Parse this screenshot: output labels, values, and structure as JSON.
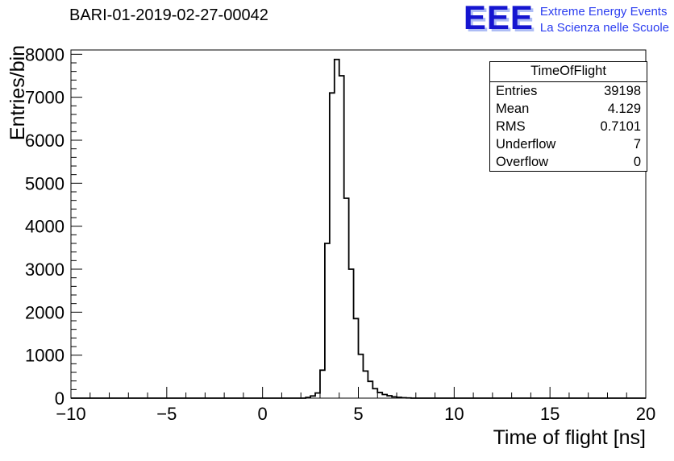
{
  "header": {
    "title": "BARI-01-2019-02-27-00042",
    "logo": {
      "text": "EEE",
      "line1": "Extreme Energy Events",
      "line2": "La Scienza nelle Scuole",
      "color": "#1515d0"
    }
  },
  "stats_box": {
    "title": "TimeOfFlight",
    "rows": [
      {
        "label": "Entries",
        "value": "39198"
      },
      {
        "label": "Mean",
        "value": "4.129"
      },
      {
        "label": "RMS",
        "value": "0.7101"
      },
      {
        "label": "Underflow",
        "value": "7"
      },
      {
        "label": "Overflow",
        "value": "0"
      }
    ]
  },
  "chart_data": {
    "type": "bar",
    "style": "histogram-step",
    "title": "BARI-01-2019-02-27-00042",
    "xlabel": "Time of flight [ns]",
    "ylabel": "Entries/bin",
    "xlim": [
      -10,
      20
    ],
    "ylim": [
      0,
      8100
    ],
    "grid": false,
    "legend": "none",
    "line_color": "#000000",
    "bin_width": 0.25,
    "bin_left_edges": [
      2.25,
      2.5,
      2.75,
      3.0,
      3.25,
      3.5,
      3.75,
      4.0,
      4.25,
      4.5,
      4.75,
      5.0,
      5.25,
      5.5,
      5.75,
      6.0,
      6.25,
      6.5,
      6.75,
      7.0,
      7.25,
      7.5
    ],
    "values": [
      15,
      50,
      120,
      650,
      3600,
      7100,
      7880,
      7500,
      4650,
      3000,
      1850,
      1020,
      630,
      390,
      220,
      130,
      85,
      55,
      30,
      18,
      10,
      5
    ],
    "x_major_ticks": [
      {
        "value": -10,
        "label": "−10"
      },
      {
        "value": -5,
        "label": "−5"
      },
      {
        "value": 0,
        "label": "0"
      },
      {
        "value": 5,
        "label": "5"
      },
      {
        "value": 10,
        "label": "10"
      },
      {
        "value": 15,
        "label": "15"
      },
      {
        "value": 20,
        "label": "20"
      }
    ],
    "y_major_ticks": [
      {
        "value": 0,
        "label": "0"
      },
      {
        "value": 1000,
        "label": "1000"
      },
      {
        "value": 2000,
        "label": "2000"
      },
      {
        "value": 3000,
        "label": "3000"
      },
      {
        "value": 4000,
        "label": "4000"
      },
      {
        "value": 5000,
        "label": "5000"
      },
      {
        "value": 6000,
        "label": "6000"
      },
      {
        "value": 7000,
        "label": "7000"
      },
      {
        "value": 8000,
        "label": "8000"
      }
    ],
    "x_minor_step": 1,
    "y_minor_step": 200
  }
}
